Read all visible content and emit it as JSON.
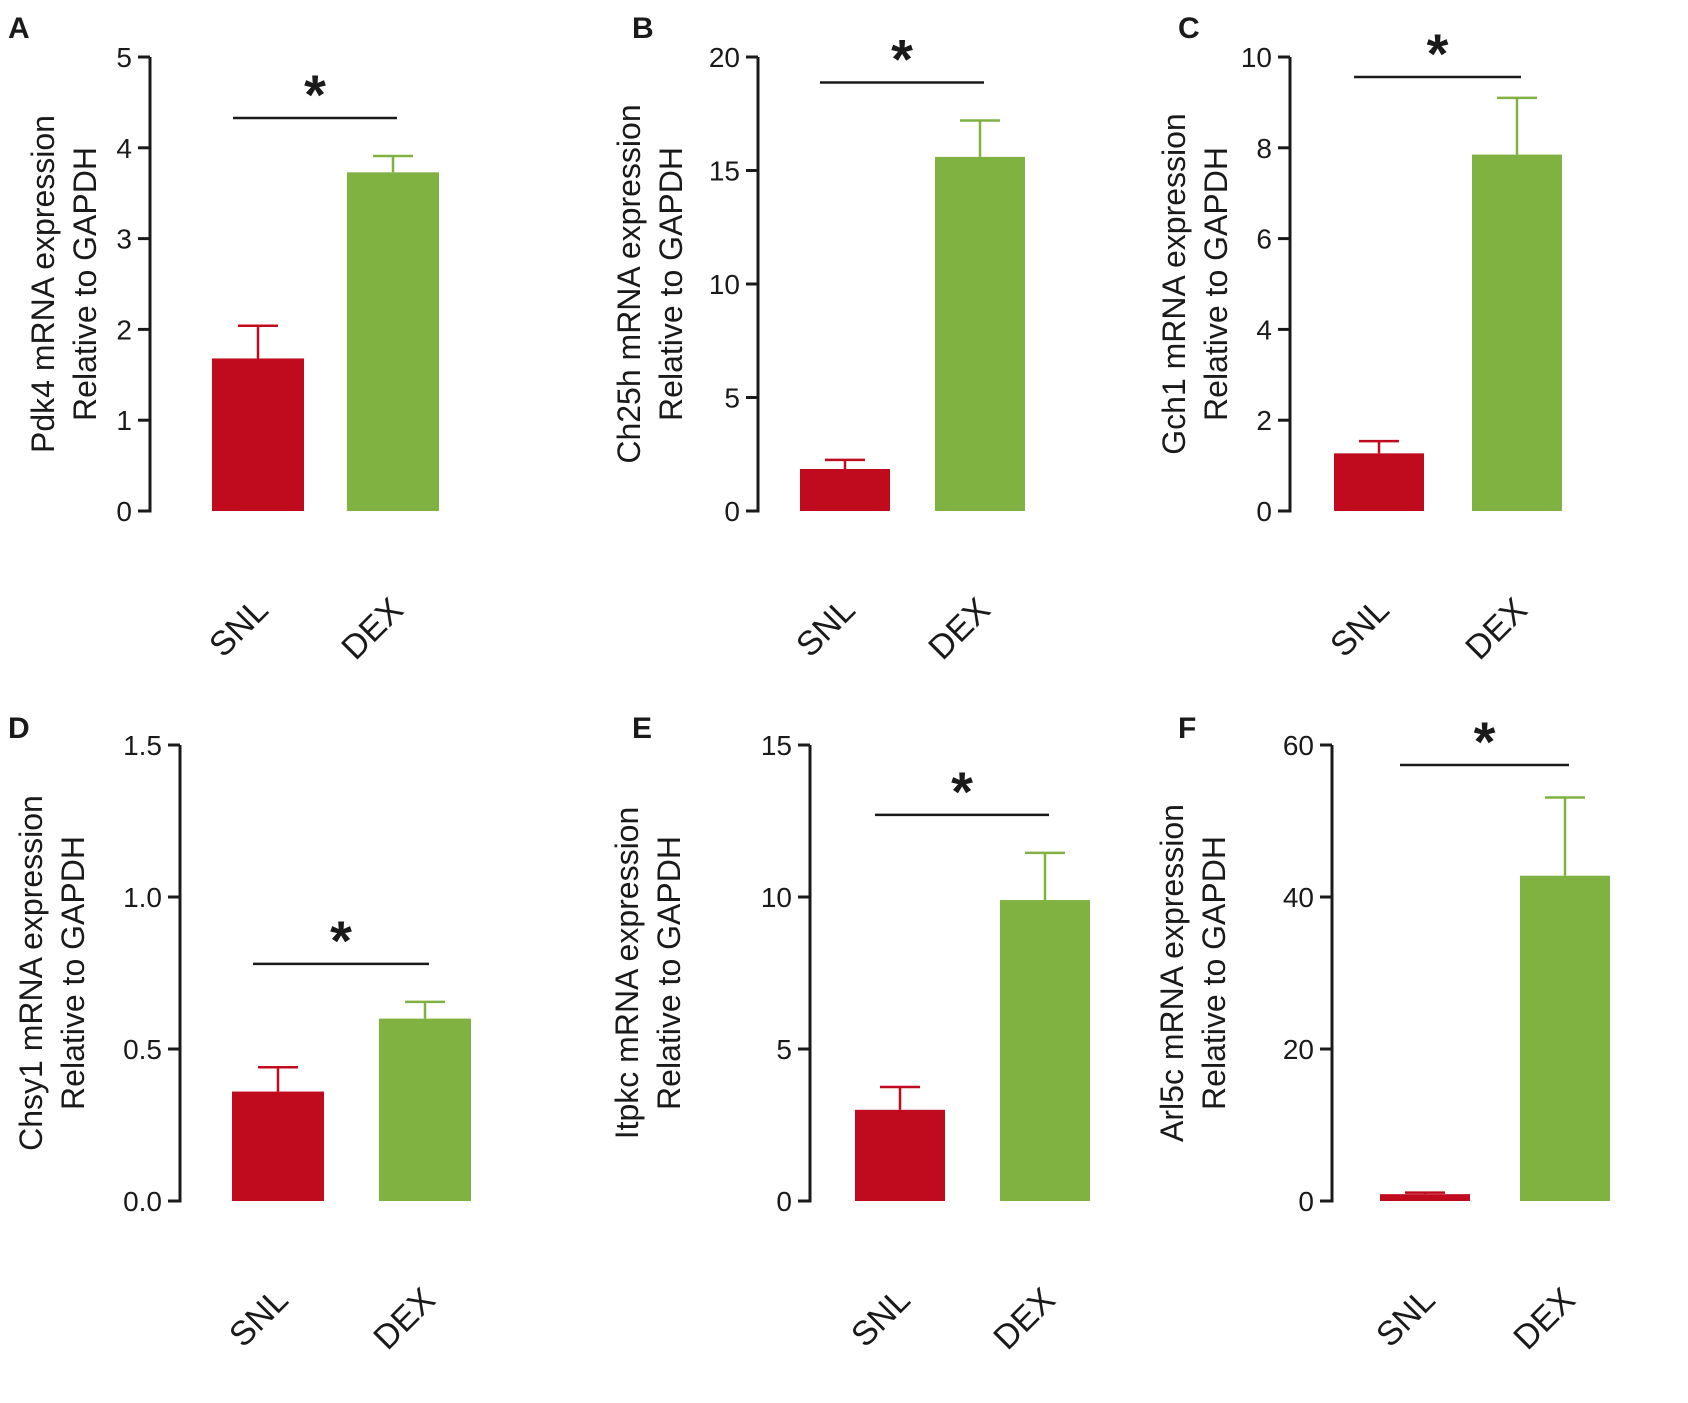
{
  "colors": {
    "snl": "#c00a1e",
    "dex": "#7fb241",
    "axis": "#1a1a1a"
  },
  "chart_data": [
    {
      "panel": "A",
      "type": "bar",
      "ylabel_line1": "Pdk4  mRNA expression",
      "ylabel_line2": "Relative to GAPDH",
      "categories": [
        "SNL",
        "DEX"
      ],
      "values": [
        1.68,
        3.73
      ],
      "errors": [
        0.36,
        0.18
      ],
      "ylim": [
        0,
        5
      ],
      "ticks": [
        "0",
        "1",
        "2",
        "3",
        "4",
        "5"
      ],
      "significance": "*"
    },
    {
      "panel": "B",
      "type": "bar",
      "ylabel_line1": "Ch25h  mRNA expression",
      "ylabel_line2": "Relative to GAPDH",
      "categories": [
        "SNL",
        "DEX"
      ],
      "values": [
        1.85,
        15.6
      ],
      "errors": [
        0.4,
        1.6
      ],
      "ylim": [
        0,
        20
      ],
      "ticks": [
        "0",
        "5",
        "10",
        "15",
        "20"
      ],
      "significance": "*"
    },
    {
      "panel": "C",
      "type": "bar",
      "ylabel_line1": "Gch1  mRNA expression",
      "ylabel_line2": "Relative to GAPDH",
      "categories": [
        "SNL",
        "DEX"
      ],
      "values": [
        1.27,
        7.85
      ],
      "errors": [
        0.27,
        1.25
      ],
      "ylim": [
        0,
        10
      ],
      "ticks": [
        "0",
        "2",
        "4",
        "6",
        "8",
        "10"
      ],
      "significance": "*"
    },
    {
      "panel": "D",
      "type": "bar",
      "ylabel_line1": "Chsy1  mRNA expression",
      "ylabel_line2": "Relative to GAPDH",
      "categories": [
        "SNL",
        "DEX"
      ],
      "values": [
        0.36,
        0.6
      ],
      "errors": [
        0.08,
        0.055
      ],
      "ylim": [
        0,
        1.5
      ],
      "ticks": [
        "0.0",
        "0.5",
        "1.0",
        "1.5"
      ],
      "significance": "*"
    },
    {
      "panel": "E",
      "type": "bar",
      "ylabel_line1": "Itpkc  mRNA expression",
      "ylabel_line2": "Relative to GAPDH",
      "categories": [
        "SNL",
        "DEX"
      ],
      "values": [
        3.0,
        9.9
      ],
      "errors": [
        0.75,
        1.55
      ],
      "ylim": [
        0,
        15
      ],
      "ticks": [
        "0",
        "5",
        "10",
        "15"
      ],
      "significance": "*"
    },
    {
      "panel": "F",
      "type": "bar",
      "ylabel_line1": "Arl5c  mRNA expression",
      "ylabel_line2": "Relative to GAPDH",
      "categories": [
        "SNL",
        "DEX"
      ],
      "values": [
        0.9,
        42.8
      ],
      "errors": [
        0.2,
        10.3
      ],
      "ylim": [
        0,
        60
      ],
      "ticks": [
        "0",
        "20",
        "40",
        "60"
      ],
      "significance": "*"
    }
  ]
}
